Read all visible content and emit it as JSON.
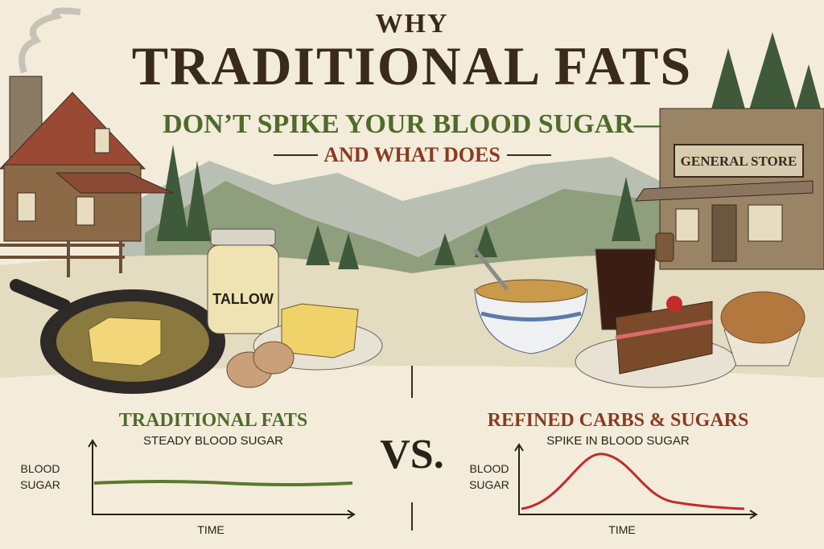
{
  "header": {
    "kicker": "WHY",
    "title": "TRADITIONAL FATS",
    "subtitle": "DON’T SPIKE YOUR BLOOD SUGAR—",
    "tagline": "AND WHAT DOES"
  },
  "scene": {
    "store_sign": "GENERAL STORE",
    "jar_label": "TALLOW"
  },
  "left": {
    "heading": "TRADITIONAL FATS",
    "caption": "STEADY BLOOD SUGAR",
    "y_label": [
      "BLOOD",
      "SUGAR"
    ],
    "x_label": "TIME"
  },
  "divider": "VS.",
  "right": {
    "heading": "REFINED CARBS & SUGARS",
    "caption": "SPIKE IN BLOOD SUGAR",
    "y_label": [
      "BLOOD",
      "SUGAR"
    ],
    "x_label": "TIME"
  }
}
